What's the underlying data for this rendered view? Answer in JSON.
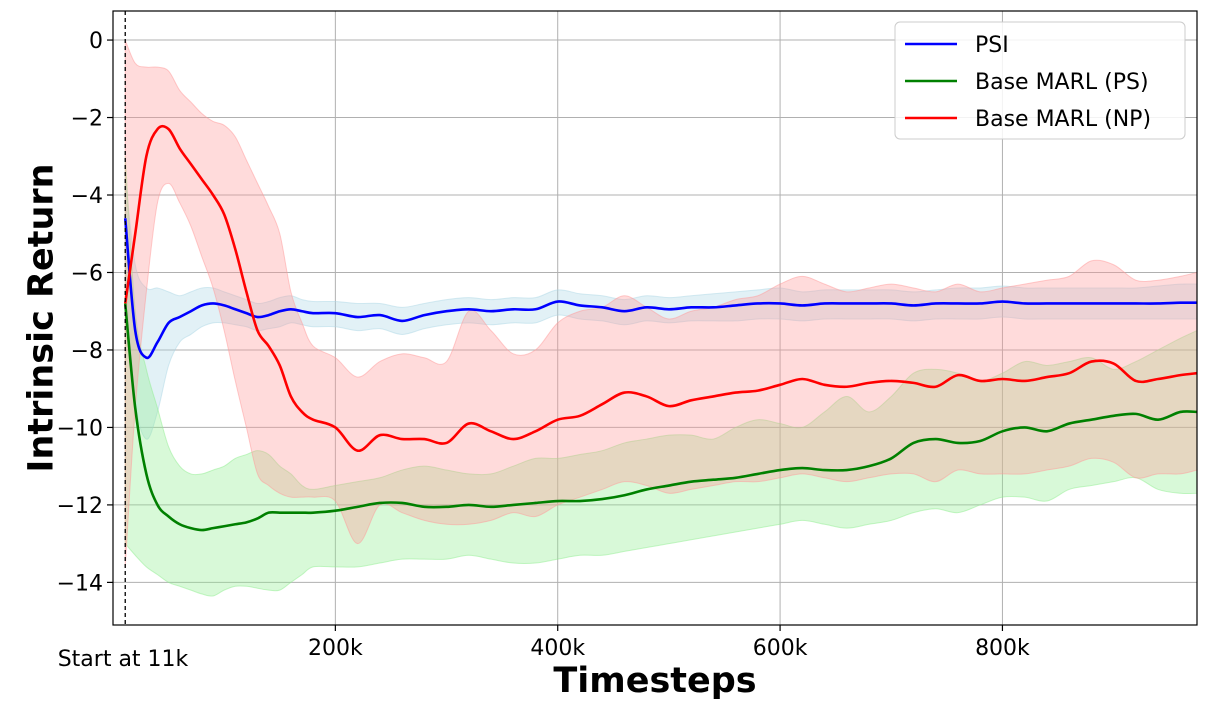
{
  "chart_data": {
    "type": "line",
    "xlabel": "Timesteps",
    "ylabel": "Intrinsic Return",
    "xlim": [
      0,
      975000
    ],
    "ylim": [
      -15.1,
      0.75
    ],
    "x_ticks": [
      200000,
      400000,
      600000,
      800000
    ],
    "x_tick_labels": [
      "200k",
      "400k",
      "600k",
      "800k"
    ],
    "y_ticks": [
      0,
      -2,
      -4,
      -6,
      -8,
      -10,
      -12,
      -14
    ],
    "y_tick_labels": [
      "0",
      "−2",
      "−4",
      "−6",
      "−8",
      "−10",
      "−12",
      "−14"
    ],
    "grid": true,
    "legend_position": "top-right",
    "annotation": {
      "text": "Start at 11k",
      "x": 11000
    },
    "x": [
      11000,
      20000,
      30000,
      40000,
      50000,
      60000,
      70000,
      80000,
      90000,
      100000,
      110000,
      120000,
      130000,
      140000,
      150000,
      160000,
      170000,
      180000,
      200000,
      220000,
      240000,
      260000,
      280000,
      300000,
      320000,
      340000,
      360000,
      380000,
      400000,
      420000,
      440000,
      460000,
      480000,
      500000,
      520000,
      540000,
      560000,
      580000,
      600000,
      620000,
      640000,
      660000,
      680000,
      700000,
      720000,
      740000,
      760000,
      780000,
      800000,
      820000,
      840000,
      860000,
      880000,
      900000,
      920000,
      940000,
      960000,
      975000
    ],
    "series": [
      {
        "name": "PSI",
        "color": "#0000ff",
        "band_color": "#add8e6",
        "mean": [
          -4.6,
          -7.5,
          -8.2,
          -7.8,
          -7.3,
          -7.15,
          -7.0,
          -6.85,
          -6.8,
          -6.85,
          -6.95,
          -7.05,
          -7.15,
          -7.1,
          -7.0,
          -6.95,
          -7.0,
          -7.05,
          -7.05,
          -7.15,
          -7.1,
          -7.25,
          -7.1,
          -7.0,
          -6.95,
          -7.0,
          -6.95,
          -6.95,
          -6.75,
          -6.85,
          -6.9,
          -7.0,
          -6.9,
          -6.95,
          -6.9,
          -6.9,
          -6.85,
          -6.8,
          -6.8,
          -6.85,
          -6.8,
          -6.8,
          -6.8,
          -6.8,
          -6.85,
          -6.8,
          -6.8,
          -6.8,
          -6.75,
          -6.8,
          -6.8,
          -6.8,
          -6.8,
          -6.8,
          -6.8,
          -6.8,
          -6.78,
          -6.78
        ],
        "upper": [
          -3.5,
          -5.8,
          -6.4,
          -6.4,
          -6.5,
          -6.6,
          -6.5,
          -6.4,
          -6.4,
          -6.5,
          -6.6,
          -6.7,
          -6.8,
          -6.75,
          -6.65,
          -6.6,
          -6.7,
          -6.75,
          -6.75,
          -6.8,
          -6.8,
          -6.9,
          -6.8,
          -6.7,
          -6.65,
          -6.7,
          -6.65,
          -6.65,
          -6.45,
          -6.55,
          -6.6,
          -6.7,
          -6.6,
          -6.65,
          -6.6,
          -6.55,
          -6.5,
          -6.45,
          -6.4,
          -6.5,
          -6.45,
          -6.45,
          -6.45,
          -6.45,
          -6.5,
          -6.45,
          -6.4,
          -6.4,
          -6.35,
          -6.4,
          -6.4,
          -6.4,
          -6.4,
          -6.4,
          -6.4,
          -6.35,
          -6.3,
          -6.3
        ],
        "lower": [
          -6.0,
          -9.3,
          -10.3,
          -9.6,
          -8.4,
          -7.8,
          -7.6,
          -7.4,
          -7.3,
          -7.3,
          -7.35,
          -7.4,
          -7.5,
          -7.45,
          -7.4,
          -7.3,
          -7.35,
          -7.4,
          -7.4,
          -7.5,
          -7.45,
          -7.6,
          -7.45,
          -7.35,
          -7.3,
          -7.35,
          -7.3,
          -7.3,
          -7.1,
          -7.2,
          -7.25,
          -7.35,
          -7.25,
          -7.3,
          -7.25,
          -7.25,
          -7.25,
          -7.2,
          -7.2,
          -7.25,
          -7.2,
          -7.2,
          -7.2,
          -7.2,
          -7.25,
          -7.2,
          -7.2,
          -7.2,
          -7.15,
          -7.2,
          -7.2,
          -7.2,
          -7.2,
          -7.2,
          -7.2,
          -7.2,
          -7.2,
          -7.2
        ]
      },
      {
        "name": "Base MARL (PS)",
        "color": "#008000",
        "band_color": "#90ee90",
        "mean": [
          -6.8,
          -9.5,
          -11.2,
          -12.0,
          -12.3,
          -12.5,
          -12.6,
          -12.65,
          -12.6,
          -12.55,
          -12.5,
          -12.45,
          -12.35,
          -12.2,
          -12.2,
          -12.2,
          -12.2,
          -12.2,
          -12.15,
          -12.05,
          -11.95,
          -11.95,
          -12.05,
          -12.05,
          -12.0,
          -12.05,
          -12.0,
          -11.95,
          -11.9,
          -11.9,
          -11.85,
          -11.75,
          -11.6,
          -11.5,
          -11.4,
          -11.35,
          -11.3,
          -11.2,
          -11.1,
          -11.05,
          -11.1,
          -11.1,
          -11.0,
          -10.8,
          -10.4,
          -10.3,
          -10.4,
          -10.35,
          -10.1,
          -10.0,
          -10.1,
          -9.9,
          -9.8,
          -9.7,
          -9.65,
          -9.8,
          -9.6,
          -9.6
        ],
        "upper": [
          -3.0,
          -7.0,
          -8.5,
          -9.5,
          -10.5,
          -11.0,
          -11.2,
          -11.2,
          -11.1,
          -11.0,
          -10.8,
          -10.7,
          -10.6,
          -10.7,
          -11.0,
          -11.2,
          -11.5,
          -11.6,
          -11.5,
          -11.4,
          -11.3,
          -11.1,
          -11.0,
          -11.1,
          -11.2,
          -11.2,
          -11.0,
          -10.8,
          -10.8,
          -10.7,
          -10.6,
          -10.4,
          -10.3,
          -10.2,
          -10.2,
          -10.3,
          -10.0,
          -9.8,
          -9.9,
          -10.0,
          -9.6,
          -9.2,
          -9.6,
          -9.2,
          -8.6,
          -8.5,
          -8.6,
          -8.8,
          -8.6,
          -8.3,
          -8.4,
          -8.3,
          -8.2,
          -8.5,
          -8.3,
          -8.0,
          -7.7,
          -7.5
        ],
        "lower": [
          -13.0,
          -13.3,
          -13.6,
          -13.8,
          -14.0,
          -14.1,
          -14.2,
          -14.3,
          -14.35,
          -14.2,
          -14.1,
          -14.1,
          -14.15,
          -14.2,
          -14.2,
          -14.0,
          -13.8,
          -13.6,
          -13.6,
          -13.6,
          -13.5,
          -13.4,
          -13.4,
          -13.4,
          -13.3,
          -13.4,
          -13.5,
          -13.5,
          -13.4,
          -13.3,
          -13.3,
          -13.2,
          -13.1,
          -13.0,
          -12.9,
          -12.8,
          -12.7,
          -12.6,
          -12.5,
          -12.4,
          -12.5,
          -12.6,
          -12.5,
          -12.4,
          -12.2,
          -12.1,
          -12.2,
          -12.0,
          -11.8,
          -11.8,
          -11.9,
          -11.6,
          -11.5,
          -11.4,
          -11.3,
          -11.6,
          -11.7,
          -11.7
        ]
      },
      {
        "name": "Base MARL (NP)",
        "color": "#ff0000",
        "band_color": "#ff9999",
        "mean": [
          -6.8,
          -5.0,
          -3.0,
          -2.3,
          -2.3,
          -2.8,
          -3.2,
          -3.6,
          -4.0,
          -4.5,
          -5.4,
          -6.5,
          -7.5,
          -7.9,
          -8.4,
          -9.2,
          -9.6,
          -9.8,
          -10.0,
          -10.6,
          -10.2,
          -10.3,
          -10.3,
          -10.4,
          -9.9,
          -10.1,
          -10.3,
          -10.1,
          -9.8,
          -9.7,
          -9.4,
          -9.1,
          -9.2,
          -9.45,
          -9.3,
          -9.2,
          -9.1,
          -9.05,
          -8.9,
          -8.75,
          -8.9,
          -8.95,
          -8.85,
          -8.8,
          -8.85,
          -8.95,
          -8.65,
          -8.8,
          -8.75,
          -8.8,
          -8.7,
          -8.6,
          -8.3,
          -8.35,
          -8.8,
          -8.75,
          -8.65,
          -8.6
        ],
        "upper": [
          0.0,
          -0.6,
          -0.7,
          -0.7,
          -0.8,
          -1.3,
          -1.6,
          -1.9,
          -2.1,
          -2.2,
          -2.5,
          -3.1,
          -3.7,
          -4.3,
          -5.0,
          -6.5,
          -7.3,
          -7.9,
          -8.2,
          -8.7,
          -8.3,
          -8.1,
          -8.2,
          -8.3,
          -7.0,
          -7.5,
          -8.1,
          -8.0,
          -7.3,
          -7.0,
          -6.9,
          -6.6,
          -6.9,
          -7.2,
          -7.0,
          -6.9,
          -6.7,
          -6.6,
          -6.3,
          -6.1,
          -6.3,
          -6.5,
          -6.4,
          -6.3,
          -6.4,
          -6.5,
          -6.3,
          -6.5,
          -6.4,
          -6.3,
          -6.2,
          -6.1,
          -5.7,
          -5.8,
          -6.2,
          -6.2,
          -6.1,
          -6.0
        ],
        "lower": [
          -13.6,
          -9.5,
          -6.5,
          -4.2,
          -3.7,
          -4.2,
          -4.8,
          -5.6,
          -6.4,
          -7.5,
          -8.8,
          -10.0,
          -11.2,
          -11.5,
          -11.7,
          -11.8,
          -11.8,
          -11.8,
          -11.9,
          -13.0,
          -12.0,
          -12.2,
          -12.4,
          -12.5,
          -12.5,
          -12.4,
          -12.2,
          -12.3,
          -12.0,
          -11.8,
          -11.6,
          -11.4,
          -11.5,
          -11.7,
          -11.6,
          -11.5,
          -11.4,
          -11.4,
          -11.3,
          -11.2,
          -11.3,
          -11.4,
          -11.3,
          -11.2,
          -11.2,
          -11.4,
          -11.1,
          -11.2,
          -11.2,
          -11.2,
          -11.1,
          -11.0,
          -10.8,
          -10.9,
          -11.3,
          -11.2,
          -11.2,
          -11.1
        ]
      }
    ]
  }
}
